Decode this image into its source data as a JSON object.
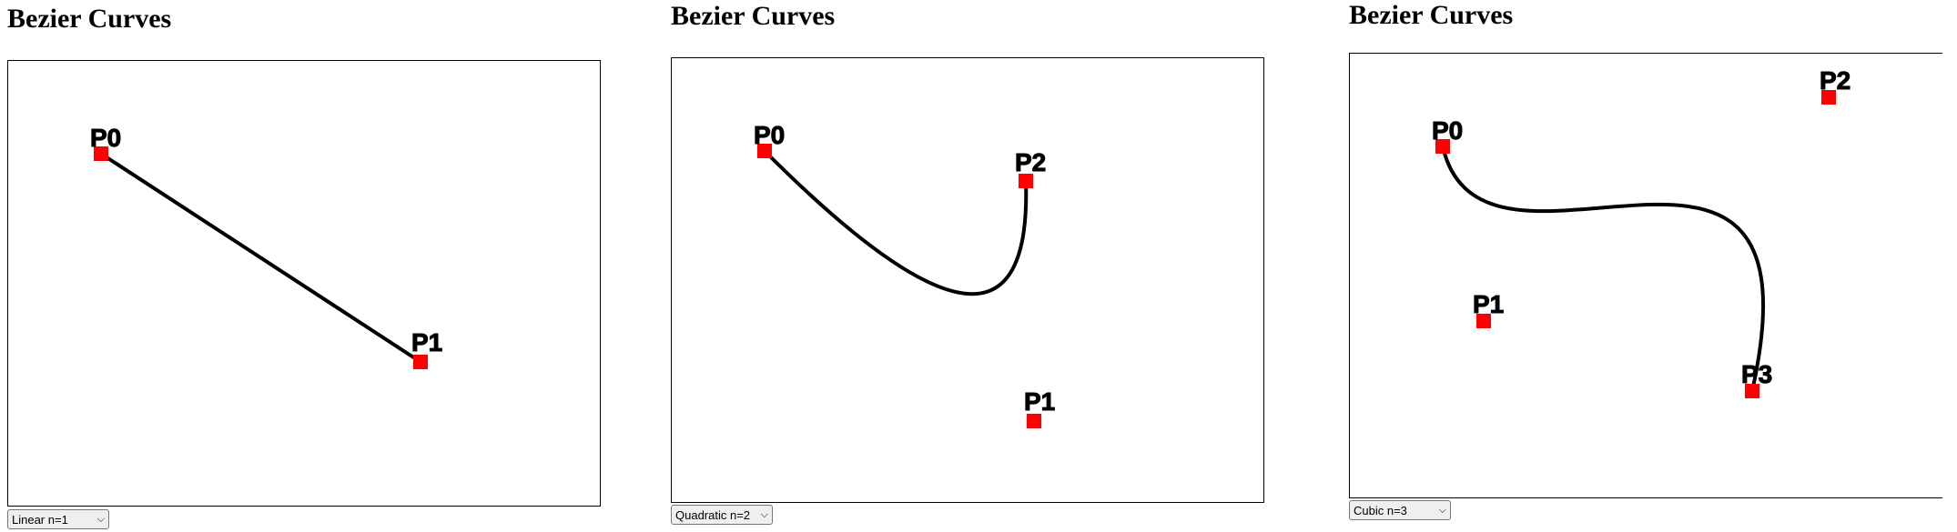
{
  "panels": [
    {
      "title": "Bezier Curves",
      "select_value": "Linear n=1",
      "points": [
        {
          "label": "P0"
        },
        {
          "label": "P1"
        }
      ]
    },
    {
      "title": "Bezier Curves",
      "select_value": "Quadratic n=2",
      "points": [
        {
          "label": "P0"
        },
        {
          "label": "P1"
        },
        {
          "label": "P2"
        }
      ]
    },
    {
      "title": "Bezier Curves",
      "select_value": "Cubic n=3",
      "points": [
        {
          "label": "P0"
        },
        {
          "label": "P1"
        },
        {
          "label": "P2"
        },
        {
          "label": "P3"
        }
      ]
    }
  ],
  "colors": {
    "control_point": "#ff0000",
    "curve": "#000000",
    "border": "#000000"
  }
}
